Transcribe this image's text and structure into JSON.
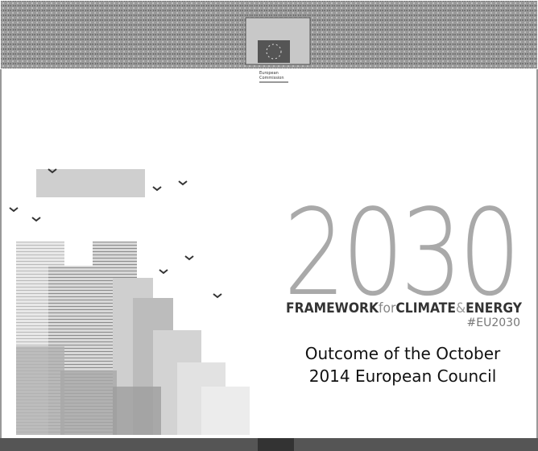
{
  "header": {
    "logo_text": [
      "European",
      "Commission"
    ]
  },
  "title": {
    "year": "2030",
    "framework": [
      "FRAMEWORK",
      "for",
      "CLIMATE",
      "&",
      "ENERGY"
    ],
    "hashtag": "#EU2030"
  },
  "subtitle": [
    "Outcome of the October",
    "2014 European Council"
  ]
}
